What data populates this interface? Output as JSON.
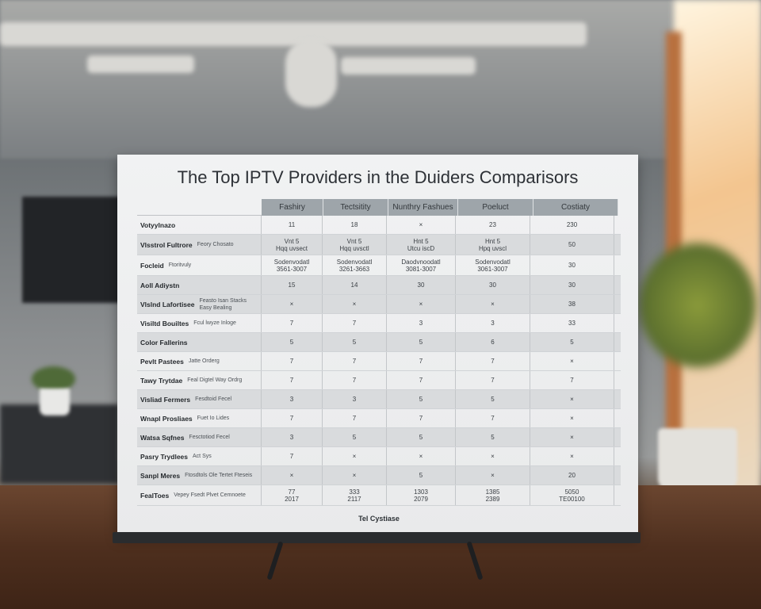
{
  "board": {
    "title": "The Top IPTV Providers in the Duiders Comparisors",
    "columns": [
      "Fashiry",
      "Tectsitity",
      "Nunthry Fashues",
      "Poeluct",
      "Costiaty"
    ],
    "widths": [
      77,
      81,
      87,
      94,
      106
    ],
    "rows": [
      {
        "label": "Votyylnazo",
        "sub": "",
        "values": [
          "11",
          "18",
          "×",
          "23",
          "230"
        ],
        "shade": false
      },
      {
        "label": "Vlsstrol Fultrore",
        "sub": "Feory Chosato",
        "values": [
          "Vnt 5\nHqq uvsect",
          "Vnt 5\nHqq uvsctl",
          "Hnt 5\nUtcu iscD",
          "Hnt 5\nHpq uvscl",
          "50"
        ],
        "shade": true
      },
      {
        "label": "Focleid",
        "sub": "Ftoritvuly",
        "values": [
          "Sodenvodatl\n3561-3007",
          "Sodenvodatl\n3261-3663",
          "Daodvnoodatl\n3081-3007",
          "Sodenvodatl\n3061-3007",
          "30"
        ],
        "shade": false
      },
      {
        "label": "Aoll Adiystn",
        "sub": "",
        "values": [
          "15",
          "14",
          "30",
          "30",
          "30"
        ],
        "shade": true
      },
      {
        "label": "Vlslnd Lafortisee",
        "sub": "Feasto Isan Stacks Easy Bealing",
        "values": [
          "×",
          "×",
          "×",
          "×",
          "38"
        ],
        "shade": true
      },
      {
        "label": "Visiltd Bouiltes",
        "sub": "Fcul lwyze Inloge",
        "values": [
          "7",
          "7",
          "3",
          "3",
          "33"
        ],
        "shade": false
      },
      {
        "label": "Color Fallerins",
        "sub": "",
        "values": [
          "5",
          "5",
          "5",
          "6",
          "5"
        ],
        "shade": true
      },
      {
        "label": "Pevlt Pastees",
        "sub": "Jatte Orderg",
        "values": [
          "7",
          "7",
          "7",
          "7",
          "×"
        ],
        "shade": false
      },
      {
        "label": "Tawy Trytdae",
        "sub": "Feal Digtel Way Ordrg",
        "values": [
          "7",
          "7",
          "7",
          "7",
          "7"
        ],
        "shade": false
      },
      {
        "label": "Visliad Fermers",
        "sub": "Fesdtoid Fecel",
        "values": [
          "3",
          "3",
          "5",
          "5",
          "×"
        ],
        "shade": true
      },
      {
        "label": "Wnapl Prosliaes",
        "sub": "Fuet Io Lides",
        "values": [
          "7",
          "7",
          "7",
          "7",
          "×"
        ],
        "shade": false
      },
      {
        "label": "Watsa Sqfnes",
        "sub": "Fesctotiod Fecel",
        "values": [
          "3",
          "5",
          "5",
          "5",
          "×"
        ],
        "shade": true
      },
      {
        "label": "Pasry Trydlees",
        "sub": "Act Sys",
        "values": [
          "7",
          "×",
          "×",
          "×",
          "×"
        ],
        "shade": false
      },
      {
        "label": "Sanpl Meres",
        "sub": "Ftosdtols Ole Tertet Fteseis",
        "values": [
          "×",
          "×",
          "5",
          "×",
          "20"
        ],
        "shade": true
      },
      {
        "label": "FealToes",
        "sub": "Vepey Fsedt Plvet Cemnoete",
        "values": [
          "77\n2017",
          "333\n2117",
          "1303\n2079",
          "1385\n2389",
          "5050\nTE00100"
        ],
        "shade": false
      }
    ],
    "footer": "Tel Cystiase"
  }
}
